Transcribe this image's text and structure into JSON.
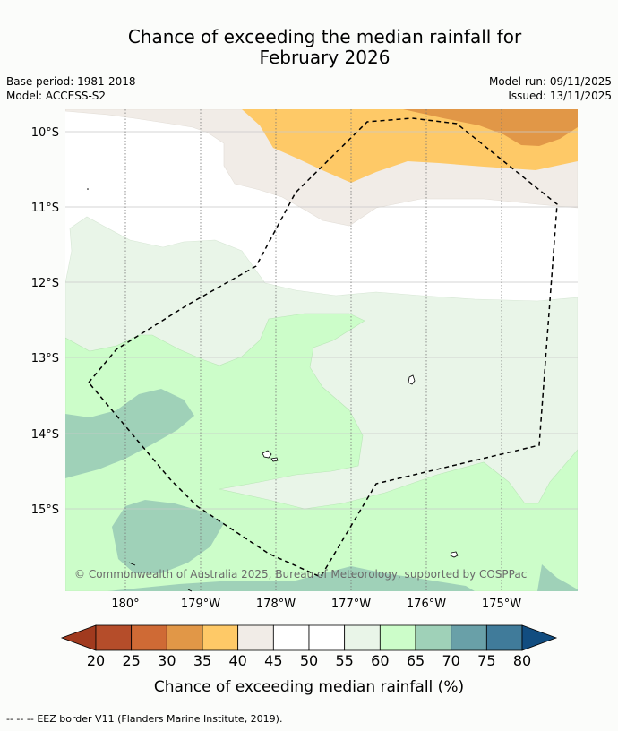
{
  "title": {
    "line1": "Chance of exceeding the median rainfall for",
    "line2": "February 2026"
  },
  "meta": {
    "base_period": "Base period: 1981-2018",
    "model": "Model: ACCESS-S2",
    "model_run": "Model run: 09/11/2025",
    "issued": "Issued: 13/11/2025"
  },
  "map": {
    "lat_labels": [
      "10°S",
      "11°S",
      "12°S",
      "13°S",
      "14°S",
      "15°S"
    ],
    "lon_labels": [
      "180°",
      "179°W",
      "178°W",
      "177°W",
      "176°W",
      "175°W"
    ],
    "copyright": "© Commonwealth of Australia 2025, Bureau of Meteorology, supported by COSPPac"
  },
  "colorbar": {
    "ticks": [
      "20",
      "25",
      "30",
      "35",
      "40",
      "45",
      "50",
      "55",
      "60",
      "65",
      "70",
      "75",
      "80"
    ],
    "colors": [
      "#b54d2a",
      "#cf6a35",
      "#e19747",
      "#fec967",
      "#f1ece7",
      "#ffffff",
      "#ffffff",
      "#e9f5e8",
      "#ccfdc9",
      "#9fd1b8",
      "#69a0a8",
      "#407b9a"
    ],
    "under_color": "#a13a1e",
    "over_color": "#124d80",
    "label": "Chance of exceeding median rainfall (%)"
  },
  "footer": {
    "legend_symbol": "-- -- --",
    "legend_text": "EEZ border V11 (Flanders Marine Institute, 2019)."
  }
}
